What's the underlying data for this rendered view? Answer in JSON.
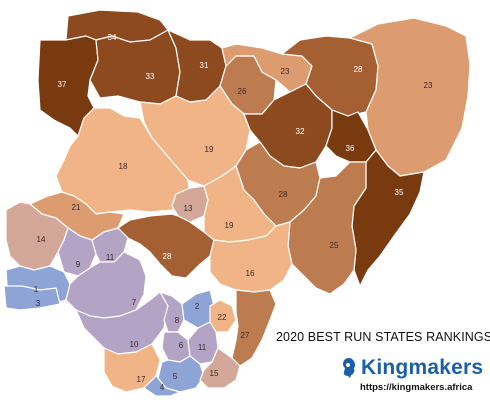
{
  "title": "2020 BEST RUN STATES RANKINGS",
  "brand": {
    "name": "Kingmakers",
    "url": "https://kingmakers.africa",
    "icon": "kingmakers-logo-icon"
  },
  "colors": {
    "darkest": "#7a3a10",
    "dark": "#8e4a1f",
    "medium_dark": "#a45f32",
    "medium": "#bd7c4f",
    "light": "#dc9c70",
    "lighter": "#f0b487",
    "pale": "#d4a898",
    "lavender": "#b3a3c4",
    "blue": "#8ea4d6",
    "brand_blue": "#1a5fa8"
  },
  "states": [
    {
      "id": "sokoto",
      "rank": "34",
      "color": "dark"
    },
    {
      "id": "kebbi",
      "rank": "37",
      "color": "darkest"
    },
    {
      "id": "zamfara",
      "rank": "33",
      "color": "dark"
    },
    {
      "id": "katsina",
      "rank": "31",
      "color": "dark"
    },
    {
      "id": "kano",
      "rank": "26",
      "color": "medium"
    },
    {
      "id": "jigawa",
      "rank": "23",
      "color": "light"
    },
    {
      "id": "yobe",
      "rank": "28",
      "color": "medium_dark"
    },
    {
      "id": "borno",
      "rank": "23",
      "color": "light"
    },
    {
      "id": "kaduna",
      "rank": "19",
      "color": "lighter"
    },
    {
      "id": "bauchi",
      "rank": "32",
      "color": "dark"
    },
    {
      "id": "gombe",
      "rank": "36",
      "color": "darkest"
    },
    {
      "id": "adamawa",
      "rank": "35",
      "color": "darkest"
    },
    {
      "id": "niger",
      "rank": "18",
      "color": "lighter"
    },
    {
      "id": "plateau",
      "rank": "28",
      "color": "medium"
    },
    {
      "id": "fct",
      "rank": "13",
      "color": "pale"
    },
    {
      "id": "nasarawa",
      "rank": "19",
      "color": "lighter"
    },
    {
      "id": "taraba",
      "rank": "25",
      "color": "medium"
    },
    {
      "id": "kwara",
      "rank": "21",
      "color": "light"
    },
    {
      "id": "kogi",
      "rank": "28",
      "color": "medium_dark"
    },
    {
      "id": "benue",
      "rank": "16",
      "color": "lighter"
    },
    {
      "id": "oyo",
      "rank": "14",
      "color": "pale"
    },
    {
      "id": "osun",
      "rank": "9",
      "color": "lavender"
    },
    {
      "id": "ekiti",
      "rank": "11",
      "color": "lavender"
    },
    {
      "id": "ogun",
      "rank": "3",
      "color": "blue"
    },
    {
      "id": "lagos",
      "rank": "1",
      "color": "blue"
    },
    {
      "id": "ondo",
      "rank": "7",
      "color": "lavender"
    },
    {
      "id": "edo",
      "rank": "10",
      "color": "lavender"
    },
    {
      "id": "anambra",
      "rank": "8",
      "color": "lavender"
    },
    {
      "id": "enugu",
      "rank": "2",
      "color": "blue"
    },
    {
      "id": "ebonyi",
      "rank": "22",
      "color": "lighter"
    },
    {
      "id": "cross_river",
      "rank": "27",
      "color": "medium"
    },
    {
      "id": "delta",
      "rank": "17",
      "color": "lighter"
    },
    {
      "id": "imo",
      "rank": "6",
      "color": "lavender"
    },
    {
      "id": "abia",
      "rank": "11",
      "color": "lavender"
    },
    {
      "id": "rivers",
      "rank": "5",
      "color": "blue"
    },
    {
      "id": "akwa_ibom",
      "rank": "15",
      "color": "pale"
    },
    {
      "id": "bayelsa",
      "rank": "4",
      "color": "blue"
    }
  ]
}
